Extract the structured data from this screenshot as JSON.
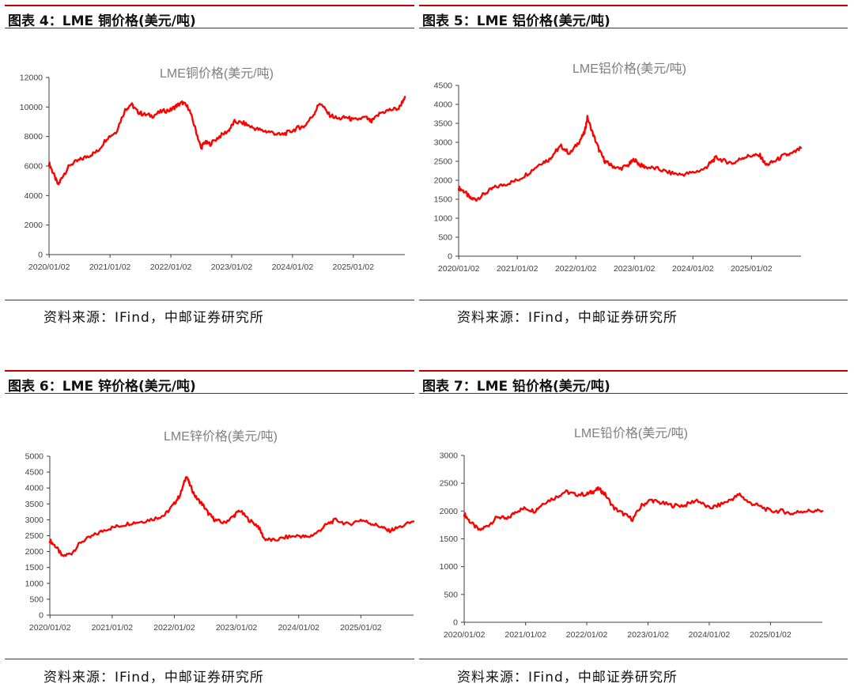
{
  "panels": [
    {
      "header": "图表 4：LME 铜价格(美元/吨)",
      "source": "资料来源：IFind，中邮证券研究所",
      "chart_data": {
        "type": "line",
        "title": "LME铜价格(美元/吨)",
        "series": [
          {
            "name": "LME铜价格",
            "color": "#ff0000",
            "x": [
              2020.0,
              2020.06,
              2020.15,
              2020.22,
              2020.35,
              2020.5,
              2020.65,
              2020.8,
              2020.95,
              2021.1,
              2021.25,
              2021.35,
              2021.45,
              2021.55,
              2021.7,
              2021.85,
              2022.0,
              2022.1,
              2022.2,
              2022.3,
              2022.4,
              2022.5,
              2022.55,
              2022.65,
              2022.8,
              2022.95,
              2023.05,
              2023.2,
              2023.35,
              2023.5,
              2023.65,
              2023.8,
              2023.95,
              2024.1,
              2024.2,
              2024.35,
              2024.45,
              2024.6,
              2024.75,
              2024.9,
              2025.0,
              2025.2,
              2025.3,
              2025.45,
              2025.6,
              2025.75,
              2025.85
            ],
            "y": [
              6200,
              5600,
              4700,
              5300,
              6100,
              6400,
              6700,
              7000,
              7900,
              8300,
              9800,
              10200,
              9700,
              9500,
              9400,
              9700,
              9800,
              10100,
              10300,
              9900,
              8600,
              7200,
              7600,
              7500,
              8000,
              8400,
              9000,
              8900,
              8600,
              8400,
              8300,
              8100,
              8300,
              8600,
              8700,
              9500,
              10300,
              9500,
              9200,
              9300,
              9100,
              9300,
              9000,
              9600,
              9800,
              9900,
              10700
            ]
          }
        ],
        "xticks": [
          "2020/01/02",
          "2021/01/02",
          "2022/01/02",
          "2023/01/02",
          "2024/01/02",
          "2025/01/02"
        ],
        "yticks": [
          "0",
          "2000",
          "4000",
          "6000",
          "8000",
          "10000",
          "12000"
        ],
        "xlim": [
          2020.0,
          2025.85
        ],
        "ylim": [
          0,
          12000
        ]
      }
    },
    {
      "header": "图表 5：LME 铝价格(美元/吨)",
      "source": "资料来源：IFind，中邮证券研究所",
      "chart_data": {
        "type": "line",
        "title": "LME铝价格(美元/吨)",
        "series": [
          {
            "name": "LME铝价格",
            "color": "#ff0000",
            "x": [
              2020.0,
              2020.1,
              2020.2,
              2020.3,
              2020.45,
              2020.6,
              2020.8,
              2021.0,
              2021.2,
              2021.4,
              2021.55,
              2021.65,
              2021.75,
              2021.9,
              2022.05,
              2022.15,
              2022.2,
              2022.3,
              2022.4,
              2022.5,
              2022.6,
              2022.75,
              2022.9,
              2023.0,
              2023.1,
              2023.2,
              2023.4,
              2023.6,
              2023.8,
              2024.0,
              2024.2,
              2024.3,
              2024.4,
              2024.55,
              2024.7,
              2024.85,
              2025.0,
              2025.15,
              2025.25,
              2025.4,
              2025.55,
              2025.7,
              2025.85
            ],
            "y": [
              1800,
              1700,
              1520,
              1500,
              1650,
              1800,
              1900,
              2000,
              2200,
              2450,
              2550,
              2750,
              2900,
              2700,
              3000,
              3250,
              3650,
              3200,
              2800,
              2500,
              2400,
              2300,
              2400,
              2550,
              2400,
              2350,
              2300,
              2200,
              2150,
              2200,
              2300,
              2450,
              2600,
              2500,
              2450,
              2600,
              2650,
              2650,
              2400,
              2500,
              2650,
              2700,
              2850
            ]
          }
        ],
        "xticks": [
          "2020/01/02",
          "2021/01/02",
          "2022/01/02",
          "2023/01/02",
          "2024/01/02",
          "2025/01/02"
        ],
        "yticks": [
          "0",
          "500",
          "1000",
          "1500",
          "2000",
          "2500",
          "3000",
          "3500",
          "4000",
          "4500"
        ],
        "xlim": [
          2020.0,
          2025.85
        ],
        "ylim": [
          0,
          4500
        ]
      }
    },
    {
      "header": "图表 6：LME 锌价格(美元/吨)",
      "source": "资料来源：IFind，中邮证券研究所",
      "chart_data": {
        "type": "line",
        "title": "LME锌价格(美元/吨)",
        "series": [
          {
            "name": "LME锌价格",
            "color": "#ff0000",
            "x": [
              2020.0,
              2020.1,
              2020.2,
              2020.35,
              2020.5,
              2020.7,
              2020.9,
              2021.1,
              2021.3,
              2021.5,
              2021.7,
              2021.85,
              2022.0,
              2022.1,
              2022.2,
              2022.25,
              2022.35,
              2022.45,
              2022.55,
              2022.65,
              2022.8,
              2022.95,
              2023.05,
              2023.2,
              2023.35,
              2023.45,
              2023.6,
              2023.8,
              2024.0,
              2024.15,
              2024.3,
              2024.45,
              2024.6,
              2024.8,
              2025.0,
              2025.15,
              2025.3,
              2025.45,
              2025.6,
              2025.85
            ],
            "y": [
              2350,
              2150,
              1850,
              1950,
              2300,
              2500,
              2700,
              2800,
              2900,
              2950,
              3050,
              3150,
              3500,
              3800,
              4400,
              4100,
              3700,
              3500,
              3200,
              3000,
              2900,
              3100,
              3300,
              3000,
              2800,
              2400,
              2350,
              2450,
              2500,
              2450,
              2600,
              2850,
              3000,
              2850,
              3000,
              2900,
              2800,
              2650,
              2750,
              2950
            ]
          }
        ],
        "xticks": [
          "2020/01/02",
          "2021/01/02",
          "2022/01/02",
          "2023/01/02",
          "2024/01/02",
          "2025/01/02"
        ],
        "yticks": [
          "0",
          "500",
          "1000",
          "1500",
          "2000",
          "2500",
          "3000",
          "3500",
          "4000",
          "4500",
          "5000"
        ],
        "xlim": [
          2020.0,
          2025.85
        ],
        "ylim": [
          0,
          5000
        ]
      }
    },
    {
      "header": "图表 7：LME 铅价格(美元/吨)",
      "source": "资料来源：IFind，中邮证券研究所",
      "chart_data": {
        "type": "line",
        "title": "LME铅价格(美元/吨)",
        "series": [
          {
            "name": "LME铅价格",
            "color": "#ff0000",
            "x": [
              2020.0,
              2020.1,
              2020.25,
              2020.4,
              2020.55,
              2020.7,
              2020.85,
              2021.0,
              2021.15,
              2021.3,
              2021.5,
              2021.65,
              2021.8,
              2022.0,
              2022.1,
              2022.2,
              2022.3,
              2022.45,
              2022.6,
              2022.75,
              2022.9,
              2023.05,
              2023.2,
              2023.4,
              2023.6,
              2023.8,
              2024.0,
              2024.15,
              2024.35,
              2024.5,
              2024.65,
              2024.8,
              2025.0,
              2025.2,
              2025.35,
              2025.5,
              2025.7,
              2025.85
            ],
            "y": [
              1950,
              1800,
              1650,
              1750,
              1900,
              1850,
              2000,
              2050,
              2000,
              2150,
              2250,
              2350,
              2300,
              2300,
              2350,
              2400,
              2300,
              2050,
              1950,
              1850,
              2100,
              2200,
              2150,
              2100,
              2100,
              2200,
              2050,
              2100,
              2200,
              2300,
              2150,
              2100,
              2000,
              2000,
              1950,
              2000,
              2000,
              2000
            ]
          }
        ],
        "xticks": [
          "2020/01/02",
          "2021/01/02",
          "2022/01/02",
          "2023/01/02",
          "2024/01/02",
          "2025/01/02"
        ],
        "yticks": [
          "0",
          "500",
          "1000",
          "1500",
          "2000",
          "2500",
          "3000"
        ],
        "xlim": [
          2020.0,
          2025.85
        ],
        "ylim": [
          0,
          3000
        ]
      }
    }
  ]
}
